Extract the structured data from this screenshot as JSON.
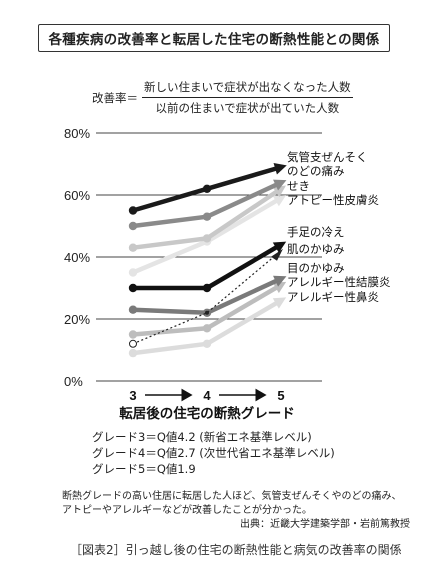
{
  "title": "各種疾病の改善率と転居した住宅の断熱性能との関係",
  "formula": {
    "lhs": "改善率＝",
    "numerator": "新しい住まいで症状が出なくなった人数",
    "denominator": "以前の住まいで症状が出ていた人数"
  },
  "chart_data": {
    "type": "line",
    "xlabel": "転居後の住宅の断熱グレード",
    "ylabel": "",
    "x": [
      3,
      4,
      5
    ],
    "x_tick_labels": [
      "3",
      "4",
      "5"
    ],
    "ylim": [
      0,
      80
    ],
    "y_ticks": [
      0,
      20,
      40,
      60,
      80
    ],
    "y_tick_labels": [
      "0%",
      "20%",
      "40%",
      "60%",
      "80%"
    ],
    "grid": true,
    "series": [
      {
        "name": "気管支ぜんそく",
        "values": [
          55,
          62,
          69
        ],
        "color": "#1a1a1a"
      },
      {
        "name": "のどの痛み",
        "values": [
          50,
          53,
          64
        ],
        "color": "#8a8a8a"
      },
      {
        "name": "せき",
        "values": [
          43,
          46,
          62
        ],
        "color": "#c8c8c8"
      },
      {
        "name": "アトピー性皮膚炎",
        "values": [
          35,
          45,
          59
        ],
        "color": "#e4e4e4"
      },
      {
        "name": "手足の冷え",
        "values": [
          30,
          30,
          44
        ],
        "color": "#111111"
      },
      {
        "name": "肌のかゆみ",
        "values": [
          12,
          22,
          42
        ],
        "color": "#222222",
        "style": "dotted"
      },
      {
        "name": "目のかゆみ",
        "values": [
          23,
          22,
          33
        ],
        "color": "#7a7a7a"
      },
      {
        "name": "アレルギー性結膜炎",
        "values": [
          15,
          17,
          31
        ],
        "color": "#bdbdbd"
      },
      {
        "name": "アレルギー性鼻炎",
        "values": [
          9,
          12,
          26
        ],
        "color": "#dcdcdc"
      }
    ],
    "label_lines": [
      "気管支ぜんそく",
      "のどの痛み",
      "せき",
      "アトピー性皮膚炎",
      "手足の冷え",
      "肌のかゆみ",
      "目のかゆみ",
      "アレルギー性結膜炎",
      "アレルギー性鼻炎"
    ]
  },
  "grades": [
    "グレード3＝Q値4.2 (新省エネ基準レベル)",
    "グレード4＝Q値2.7 (次世代省エネ基準レベル)",
    "グレード5＝Q値1.9"
  ],
  "note": {
    "line1": "断熱グレードの高い住居に転居した人ほど、気管支ぜんそくやのどの痛み、",
    "line2": "アトピーやアレルギーなどが改善したことが分かった。",
    "source": "出典：近畿大学建築学部・岩前篤教授"
  },
  "caption": "［図表2］引っ越し後の住宅の断熱性能と病気の改善率の関係"
}
